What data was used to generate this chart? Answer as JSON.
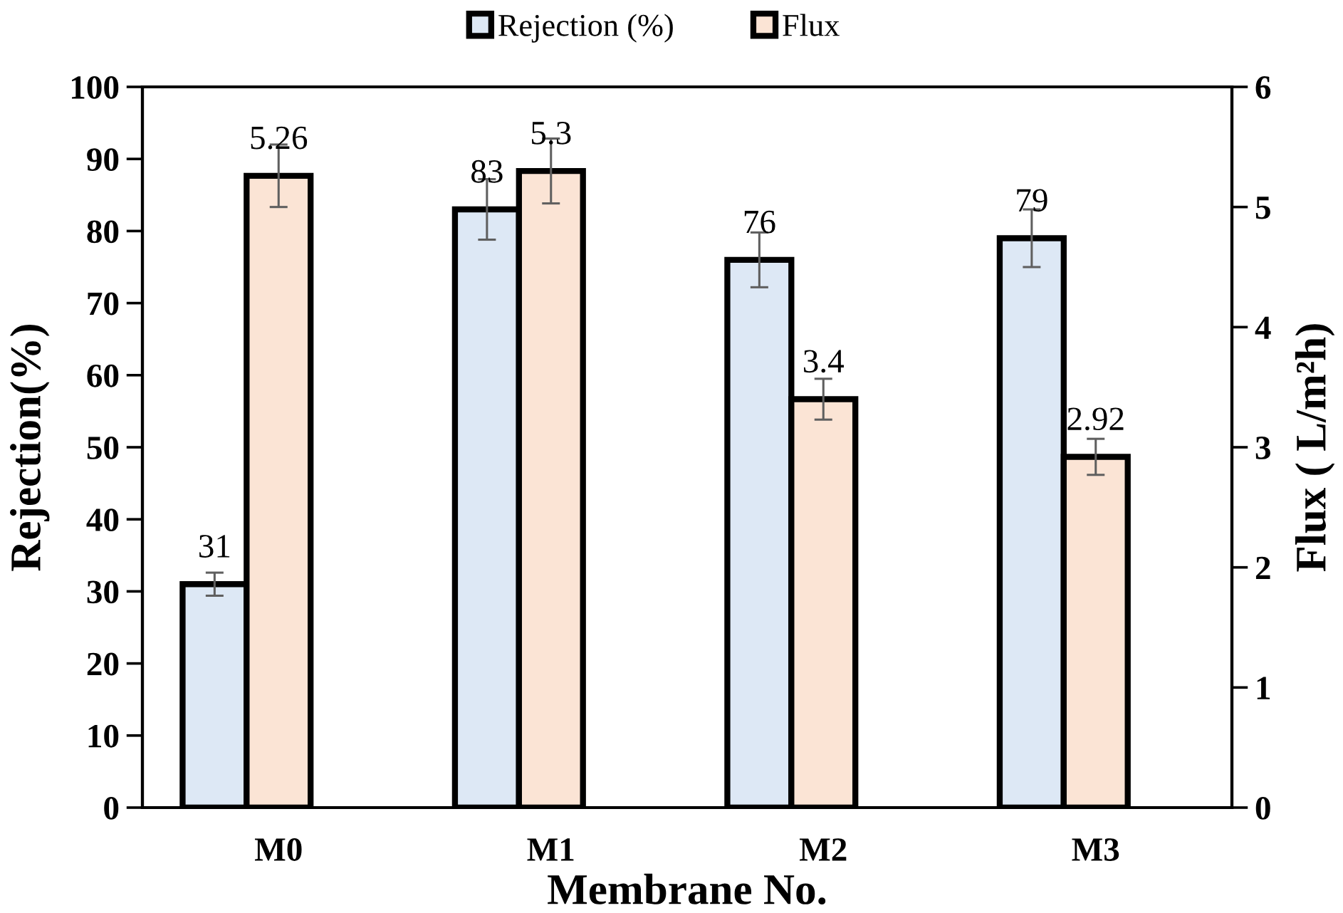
{
  "chart_data": {
    "type": "bar",
    "categories": [
      "M0",
      "M1",
      "M2",
      "M3"
    ],
    "xlabel": "Membrane No.",
    "ylabel": "Rejection(%)",
    "y2label": "Flux ( L/m²h)",
    "ylim": [
      0,
      100
    ],
    "yticks": [
      0,
      10,
      20,
      30,
      40,
      50,
      60,
      70,
      80,
      90,
      100
    ],
    "y2lim": [
      0,
      6
    ],
    "y2ticks": [
      0,
      1,
      2,
      3,
      4,
      5,
      6
    ],
    "series": [
      {
        "name": "Rejection (%)",
        "color": "#dde8f5",
        "values": [
          31,
          83,
          76,
          79
        ],
        "errors": [
          1.6,
          4.2,
          3.8,
          4.0
        ]
      },
      {
        "name": "Flux",
        "color": "#fbe4d5",
        "values": [
          5.26,
          5.3,
          3.4,
          2.92
        ],
        "errors": [
          0.26,
          0.27,
          0.17,
          0.15
        ],
        "axis": "y2"
      }
    ],
    "data_labels": true,
    "legend": "top"
  }
}
